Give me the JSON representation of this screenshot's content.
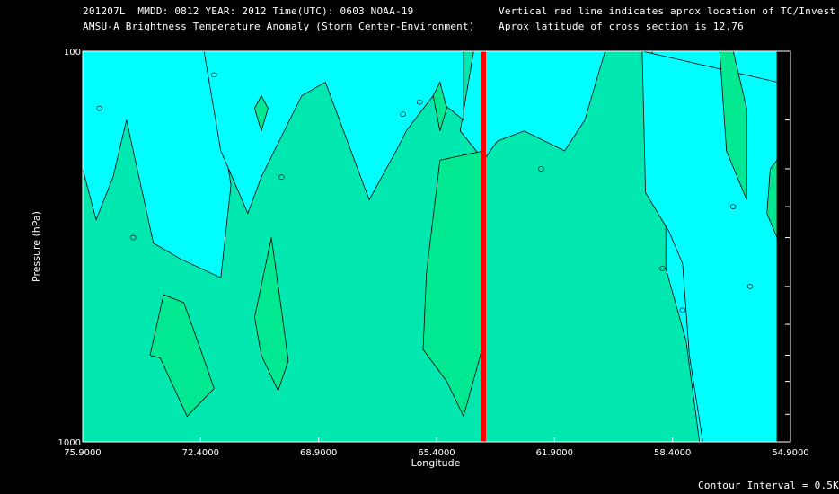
{
  "header": {
    "line1_left": "201207L  MMDD: 0812 YEAR: 2012 Time(UTC): 0603 NOAA-19",
    "line2_left": "AMSU-A Brightness Temperature Anomaly (Storm Center-Environment)",
    "line1_right": "Vertical red line indicates aprox location of TC/Invest",
    "line2_right": "Aprox latitude of cross section is 12.76"
  },
  "footer": {
    "contour_interval": "Contour Interval = 0.5K"
  },
  "colors": {
    "background": "#000000",
    "field_base": "#00e8b0",
    "field_cold": "#00ffff",
    "field_warm": "#00e890",
    "tc_line": "#ff0000",
    "contour": "#000000",
    "text": "#ffffff"
  },
  "chart_data": {
    "type": "contour",
    "title": "AMSU-A Brightness Temperature Anomaly (Storm Center-Environment)",
    "xlabel": "Longitude",
    "ylabel": "Pressure (hPa)",
    "x_direction": "decreasing",
    "xlim": [
      75.9,
      54.9
    ],
    "ylim": [
      1000,
      100
    ],
    "y_scale": "log",
    "x_ticks": [
      "75.9000",
      "72.4000",
      "68.9000",
      "65.4000",
      "61.9000",
      "58.4000",
      "54.9000"
    ],
    "x_tick_values": [
      75.9,
      72.4,
      68.9,
      65.4,
      61.9,
      58.4,
      54.9
    ],
    "y_tick_labels": [
      "100",
      "1000"
    ],
    "y_tick_values": [
      100,
      1000
    ],
    "y_minor_ticks": [
      150,
      200,
      250,
      300,
      400,
      500,
      600,
      700,
      850
    ],
    "tc_longitude": 64.0,
    "contour_interval_K": 0.5,
    "contour_label": "0",
    "no_data_region": {
      "lon_from": 55.3,
      "lon_to": 54.9
    },
    "regions": [
      {
        "name": "cold-upper-left",
        "level": "cold",
        "points": [
          [
            75.9,
            100
          ],
          [
            72.3,
            100
          ],
          [
            72.0,
            120
          ],
          [
            71.5,
            220
          ],
          [
            71.8,
            380
          ],
          [
            73.0,
            340
          ],
          [
            73.8,
            310
          ],
          [
            74.6,
            150
          ],
          [
            75.0,
            210
          ],
          [
            75.5,
            270
          ],
          [
            75.9,
            200
          ]
        ]
      },
      {
        "name": "cold-upper-mid",
        "level": "cold",
        "points": [
          [
            72.3,
            100
          ],
          [
            68.0,
            100
          ],
          [
            67.6,
            140
          ],
          [
            66.9,
            110
          ],
          [
            66.2,
            100
          ],
          [
            64.3,
            100
          ],
          [
            64.7,
            160
          ],
          [
            64.0,
            190
          ],
          [
            63.6,
            170
          ],
          [
            62.8,
            160
          ],
          [
            61.6,
            180
          ],
          [
            61.0,
            150
          ],
          [
            60.4,
            100
          ],
          [
            59.0,
            100
          ],
          [
            59.0,
            140
          ],
          [
            58.6,
            190
          ],
          [
            58.6,
            360
          ],
          [
            58.0,
            550
          ],
          [
            57.6,
            1000
          ],
          [
            56.6,
            1000
          ],
          [
            56.3,
            300
          ],
          [
            55.6,
            190
          ],
          [
            55.3,
            180
          ],
          [
            55.3,
            100
          ]
        ]
      },
      {
        "name": "cold-upper-band",
        "level": "cold",
        "points": [
          [
            72.3,
            100
          ],
          [
            71.8,
            180
          ],
          [
            71.0,
            260
          ],
          [
            70.6,
            210
          ],
          [
            69.4,
            130
          ],
          [
            68.7,
            120
          ],
          [
            67.4,
            240
          ],
          [
            66.6,
            180
          ],
          [
            66.3,
            160
          ],
          [
            65.5,
            130
          ],
          [
            64.6,
            150
          ],
          [
            64.6,
            100
          ]
        ]
      },
      {
        "name": "cold-right-column",
        "level": "cold",
        "points": [
          [
            59.3,
            100
          ],
          [
            59.2,
            230
          ],
          [
            58.5,
            290
          ],
          [
            58.1,
            350
          ],
          [
            57.9,
            600
          ],
          [
            57.5,
            1000
          ],
          [
            55.3,
            1000
          ],
          [
            55.3,
            120
          ]
        ]
      },
      {
        "name": "warm-left",
        "level": "warm",
        "points": [
          [
            72.9,
            440
          ],
          [
            72.4,
            580
          ],
          [
            72.0,
            730
          ],
          [
            72.8,
            860
          ],
          [
            73.6,
            610
          ],
          [
            73.9,
            600
          ],
          [
            73.5,
            420
          ]
        ]
      },
      {
        "name": "warm-left-2",
        "level": "warm",
        "points": [
          [
            70.3,
            300
          ],
          [
            70.8,
            480
          ],
          [
            70.6,
            600
          ],
          [
            70.1,
            740
          ],
          [
            69.8,
            620
          ],
          [
            70.0,
            460
          ]
        ]
      },
      {
        "name": "warm-center",
        "level": "warm",
        "points": [
          [
            65.3,
            190
          ],
          [
            64.0,
            180
          ],
          [
            64.0,
            560
          ],
          [
            64.6,
            860
          ],
          [
            65.1,
            700
          ],
          [
            65.8,
            580
          ],
          [
            65.7,
            370
          ]
        ]
      },
      {
        "name": "warm-small-1",
        "level": "warm",
        "points": [
          [
            70.6,
            130
          ],
          [
            70.8,
            140
          ],
          [
            70.6,
            160
          ],
          [
            70.4,
            140
          ]
        ]
      },
      {
        "name": "warm-small-2",
        "level": "warm",
        "points": [
          [
            65.5,
            130
          ],
          [
            65.3,
            120
          ],
          [
            65.1,
            140
          ],
          [
            65.3,
            160
          ]
        ]
      },
      {
        "name": "warm-right",
        "level": "warm",
        "points": [
          [
            57.0,
            100
          ],
          [
            56.8,
            180
          ],
          [
            56.2,
            240
          ],
          [
            56.2,
            140
          ],
          [
            56.6,
            100
          ]
        ]
      },
      {
        "name": "warm-right-2",
        "level": "warm",
        "points": [
          [
            55.3,
            300
          ],
          [
            55.6,
            260
          ],
          [
            55.5,
            200
          ],
          [
            55.3,
            190
          ]
        ]
      }
    ]
  }
}
